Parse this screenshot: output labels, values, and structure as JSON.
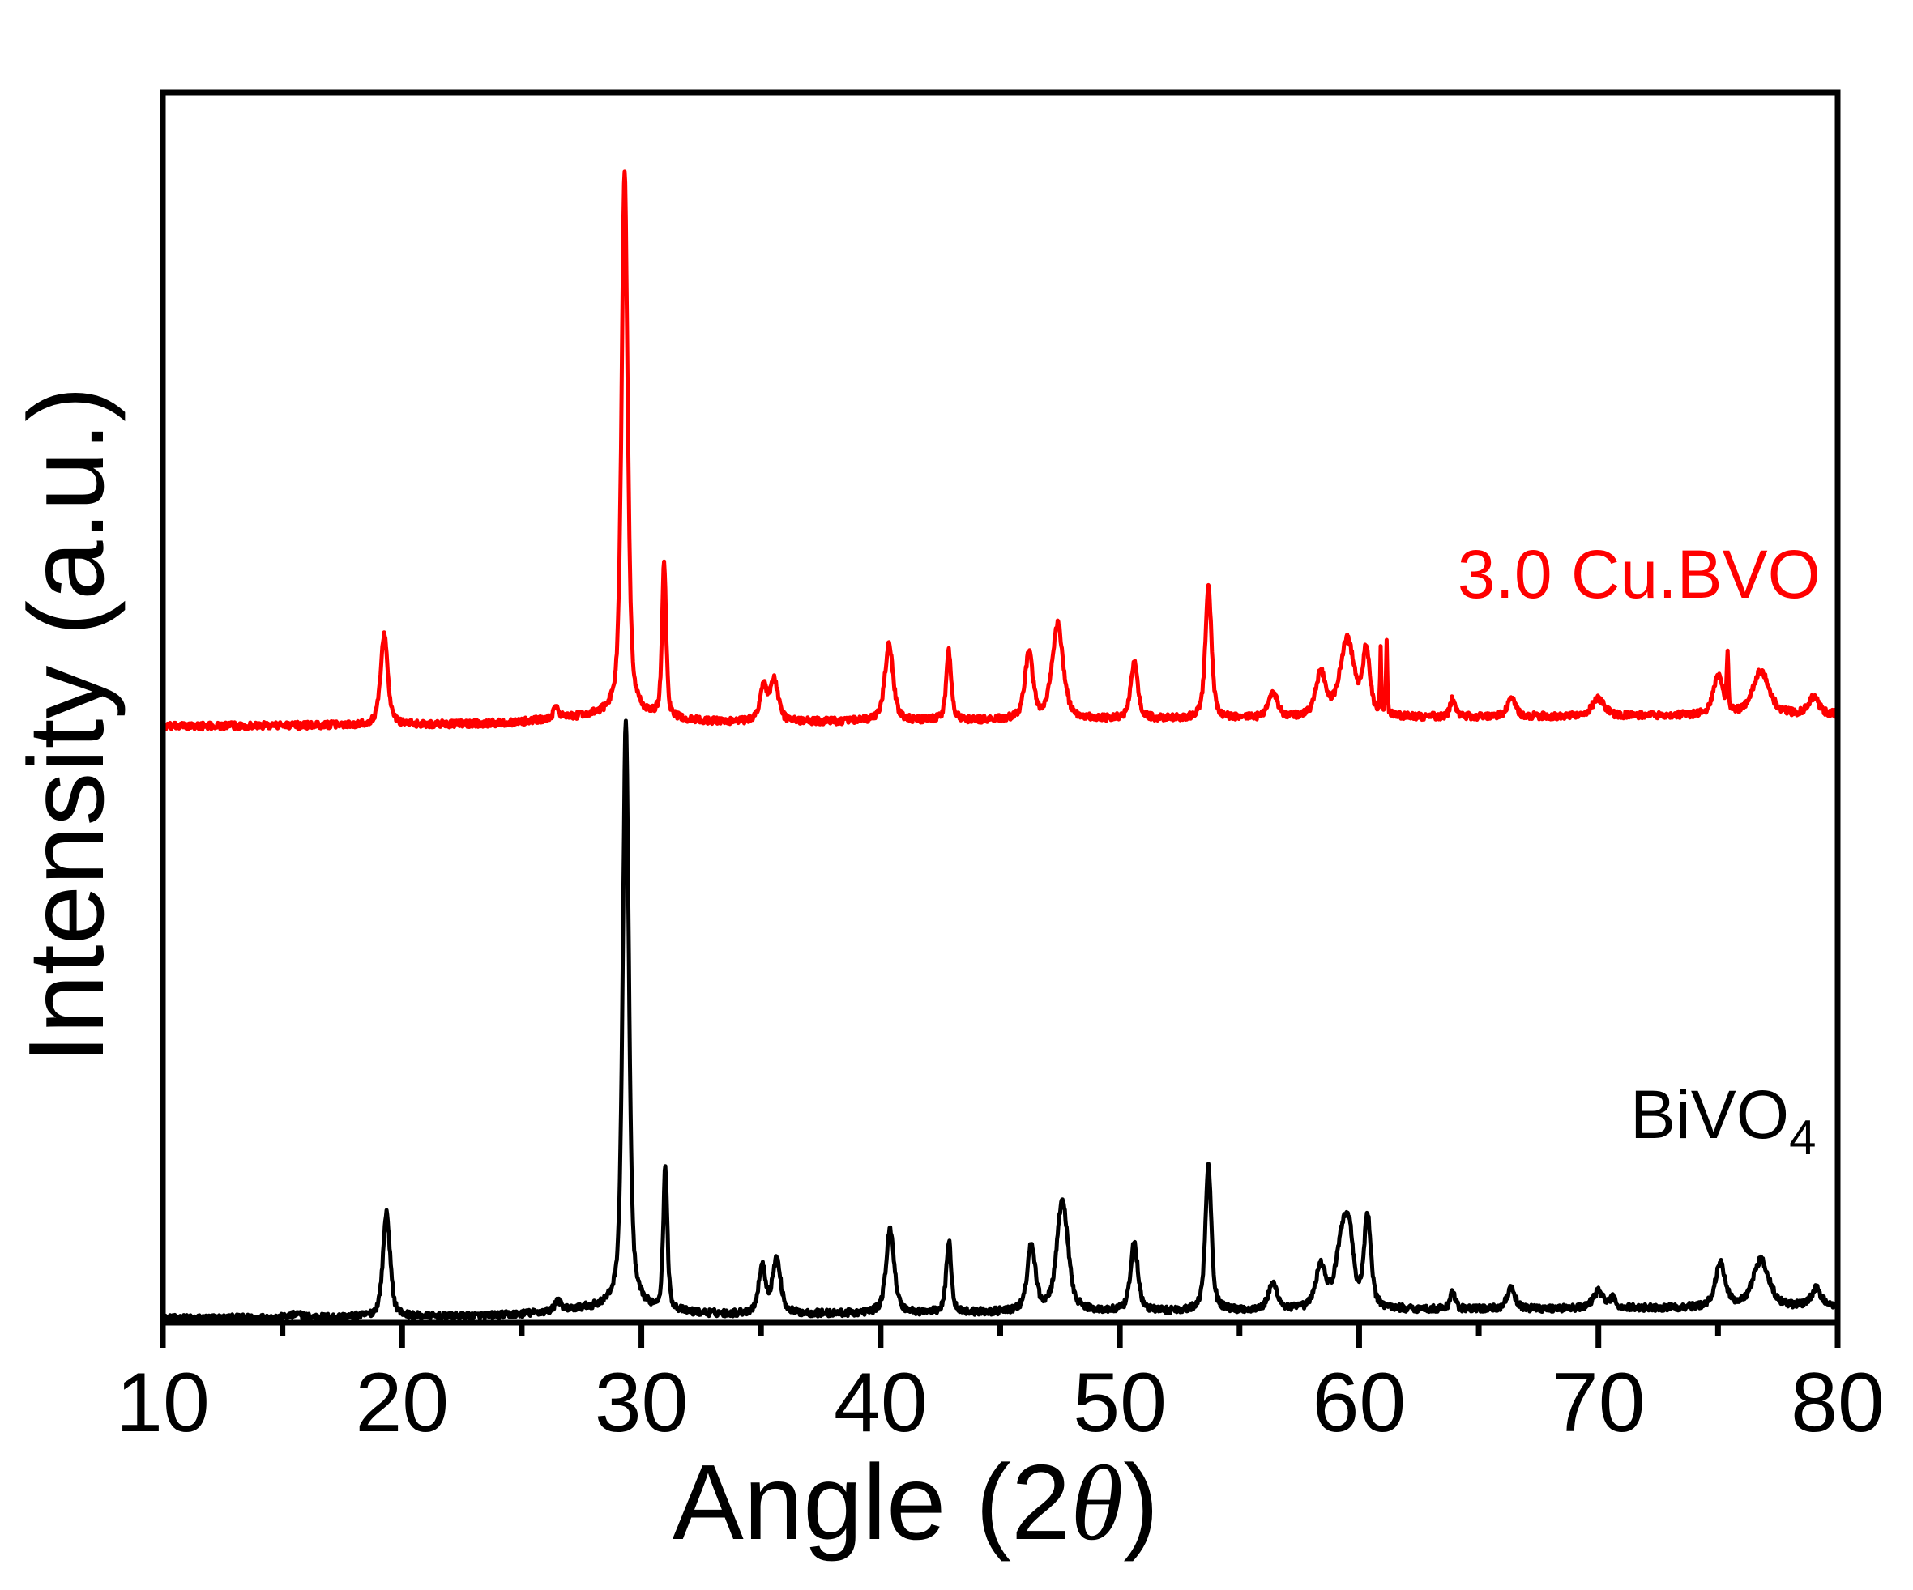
{
  "chart_data": {
    "type": "line",
    "title": "",
    "xlabel": "Angle (2θ)",
    "xlabel_parts": {
      "prefix": "Angle (2",
      "symbol": "θ",
      "suffix": ")"
    },
    "ylabel": "Intensity (a.u.)",
    "xlim": [
      10,
      80
    ],
    "ylim": [
      -0.7,
      208.5
    ],
    "x_ticks_major": [
      10,
      20,
      30,
      40,
      50,
      60,
      70,
      80
    ],
    "x_ticks_minor": [
      15,
      25,
      35,
      45,
      55,
      65,
      75
    ],
    "y_ticks": [],
    "grid": false,
    "legend": "inline labels",
    "series": [
      {
        "name": "BiVO4",
        "label_main": "BiVO",
        "label_sub": "4",
        "color": "#000000",
        "offset": 0,
        "baseline_start": 0,
        "baseline_end": 2,
        "noise": 0.6,
        "peaks": [
          [
            15.6,
            0.5,
            0.6
          ],
          [
            19.35,
            17.8,
            0.35
          ],
          [
            26.5,
            2.0,
            0.25
          ],
          [
            29.35,
            100,
            0.3
          ],
          [
            31.0,
            24.2,
            0.2
          ],
          [
            35.05,
            7.9,
            0.35
          ],
          [
            35.65,
            9.2,
            0.4
          ],
          [
            40.4,
            14.3,
            0.4
          ],
          [
            42.85,
            12.1,
            0.25
          ],
          [
            46.3,
            11.2,
            0.4
          ],
          [
            47.6,
            18.9,
            0.55
          ],
          [
            50.6,
            11.7,
            0.35
          ],
          [
            53.7,
            24.8,
            0.3
          ],
          [
            56.4,
            4.4,
            0.45
          ],
          [
            58.4,
            7.2,
            0.5
          ],
          [
            59.3,
            12.0,
            0.6
          ],
          [
            59.6,
            9.0,
            0.4
          ],
          [
            60.35,
            15.4,
            0.35
          ],
          [
            63.9,
            3.0,
            0.25
          ],
          [
            66.35,
            3.4,
            0.4
          ],
          [
            70.0,
            2.9,
            0.5
          ],
          [
            70.6,
            1.5,
            0.3
          ],
          [
            75.1,
            7.3,
            0.5
          ],
          [
            76.8,
            8.0,
            0.8
          ],
          [
            79.1,
            3.0,
            0.5
          ]
        ]
      },
      {
        "name": "3.0 Cu.BVO",
        "label_main": "3.0 Cu.BVO",
        "label_sub": "",
        "color": "#ff0000",
        "offset": 100.7,
        "baseline_start": 0,
        "baseline_end": 2,
        "noise": 0.6,
        "peaks": [
          [
            19.25,
            15.4,
            0.35
          ],
          [
            26.45,
            2.1,
            0.25
          ],
          [
            29.3,
            92.4,
            0.3
          ],
          [
            30.95,
            26.2,
            0.2
          ],
          [
            35.1,
            5.9,
            0.35
          ],
          [
            35.55,
            6.9,
            0.4
          ],
          [
            40.35,
            13.2,
            0.4
          ],
          [
            42.85,
            11.7,
            0.25
          ],
          [
            46.2,
            11.0,
            0.4
          ],
          [
            47.4,
            16.1,
            0.55
          ],
          [
            50.6,
            9.5,
            0.35
          ],
          [
            53.7,
            22.6,
            0.3
          ],
          [
            56.4,
            4.1,
            0.45
          ],
          [
            58.4,
            7.3,
            0.5
          ],
          [
            59.5,
            13.1,
            0.7
          ],
          [
            60.3,
            11.0,
            0.35
          ],
          [
            60.9,
            10.5,
            0.06
          ],
          [
            61.15,
            12.3,
            0.06
          ],
          [
            63.9,
            3.0,
            0.25
          ],
          [
            66.35,
            3.1,
            0.4
          ],
          [
            70.0,
            3.0,
            0.6
          ],
          [
            75.0,
            6.5,
            0.45
          ],
          [
            75.4,
            9.5,
            0.08
          ],
          [
            76.8,
            7.4,
            0.8
          ],
          [
            79.0,
            2.8,
            0.5
          ]
        ]
      }
    ],
    "annotations": [
      {
        "text": "3.0 Cu.BVO",
        "color": "#ff0000",
        "near_x": 73,
        "near_y": 125
      },
      {
        "text": "BiVO4",
        "color": "#000000",
        "near_x": 74,
        "near_y": 30
      }
    ]
  }
}
